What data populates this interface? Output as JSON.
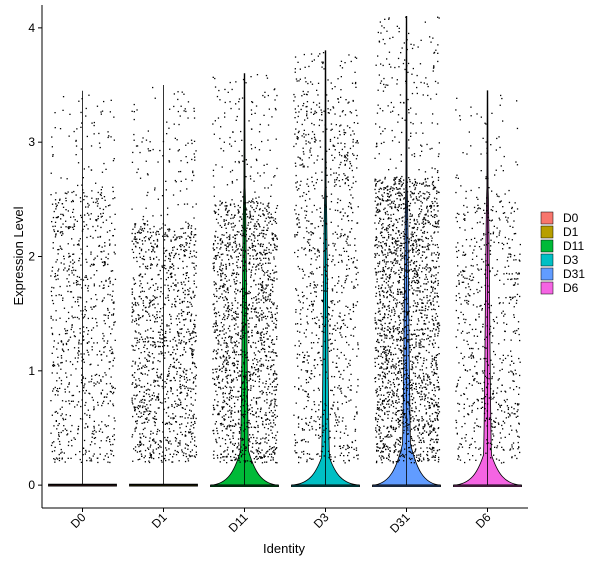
{
  "chart_data": {
    "type": "violin",
    "xlabel": "Identity",
    "ylabel": "Expression Level",
    "ylim": [
      -0.2,
      4.2
    ],
    "yticks": [
      0,
      1,
      2,
      3,
      4
    ],
    "grid": false,
    "legend_position": "right",
    "categories": [
      "D0",
      "D1",
      "D11",
      "D3",
      "D31",
      "D6"
    ],
    "series": [
      {
        "name": "D0",
        "color": "#F8766D",
        "max": 3.45,
        "zero_bulge": 0.0,
        "point_density": 0.6,
        "jitter_max": 2.6
      },
      {
        "name": "D1",
        "color": "#B79F00",
        "max": 3.5,
        "zero_bulge": 0.0,
        "point_density": 0.9,
        "jitter_max": 2.3
      },
      {
        "name": "D11",
        "color": "#00BA38",
        "max": 3.6,
        "zero_bulge": 0.25,
        "point_density": 1.2,
        "jitter_max": 2.5
      },
      {
        "name": "D3",
        "color": "#00BFC4",
        "max": 3.8,
        "zero_bulge": 0.2,
        "point_density": 0.7,
        "jitter_max": 3.3
      },
      {
        "name": "D31",
        "color": "#619CFF",
        "max": 4.1,
        "zero_bulge": 0.3,
        "point_density": 1.6,
        "jitter_max": 2.7
      },
      {
        "name": "D6",
        "color": "#F564E3",
        "max": 3.45,
        "zero_bulge": 0.22,
        "point_density": 0.5,
        "jitter_max": 2.5
      }
    ]
  },
  "legend": {
    "items": [
      {
        "label": "D0",
        "color": "#F8766D"
      },
      {
        "label": "D1",
        "color": "#B79F00"
      },
      {
        "label": "D11",
        "color": "#00BA38"
      },
      {
        "label": "D3",
        "color": "#00BFC4"
      },
      {
        "label": "D31",
        "color": "#619CFF"
      },
      {
        "label": "D6",
        "color": "#F564E3"
      }
    ]
  },
  "axes": {
    "x_title": "Identity",
    "y_title": "Expression Level"
  }
}
